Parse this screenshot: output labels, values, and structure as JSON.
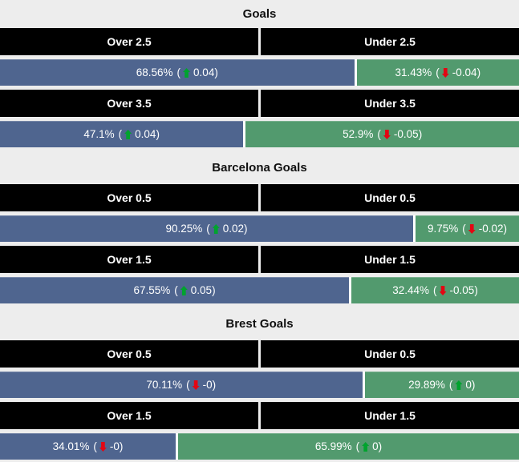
{
  "colors": {
    "page_bg": "#ededed",
    "header_bg": "#000000",
    "header_text": "#ffffff",
    "over_bar": "#4f658f",
    "under_bar": "#529a6e",
    "bar_text": "#ffffff",
    "up_arrow": "#00a32e",
    "down_arrow": "#e30613",
    "title_text": "#111111",
    "separator": "#ffffff"
  },
  "chart_data": {
    "type": "bar",
    "subtype": "horizontal-stacked-percentage-pairs",
    "value_unit": "percent",
    "range": [
      0,
      100
    ],
    "legend": "none",
    "layout": "each market row: black Over/Under header split 50/50, below it one full-width bar split proportionally (min segment width ~20%) into blue Over segment and green Under segment",
    "sections": [
      {
        "title": "Goals",
        "markets": [
          {
            "over_label": "Over 2.5",
            "under_label": "Under 2.5",
            "over": {
              "value": 68.56,
              "label": "68.56%",
              "change": "0.04",
              "trend": "up"
            },
            "under": {
              "value": 31.43,
              "label": "31.43%",
              "change": "-0.04",
              "trend": "down"
            }
          },
          {
            "over_label": "Over 3.5",
            "under_label": "Under 3.5",
            "over": {
              "value": 47.1,
              "label": "47.1%",
              "change": "0.04",
              "trend": "up"
            },
            "under": {
              "value": 52.9,
              "label": "52.9%",
              "change": "-0.05",
              "trend": "down"
            }
          }
        ]
      },
      {
        "title": "Barcelona Goals",
        "markets": [
          {
            "over_label": "Over 0.5",
            "under_label": "Under 0.5",
            "over": {
              "value": 90.25,
              "label": "90.25%",
              "change": "0.02",
              "trend": "up"
            },
            "under": {
              "value": 9.75,
              "label": "9.75%",
              "change": "-0.02",
              "trend": "down"
            }
          },
          {
            "over_label": "Over 1.5",
            "under_label": "Under 1.5",
            "over": {
              "value": 67.55,
              "label": "67.55%",
              "change": "0.05",
              "trend": "up"
            },
            "under": {
              "value": 32.44,
              "label": "32.44%",
              "change": "-0.05",
              "trend": "down"
            }
          }
        ]
      },
      {
        "title": "Brest Goals",
        "markets": [
          {
            "over_label": "Over 0.5",
            "under_label": "Under 0.5",
            "over": {
              "value": 70.11,
              "label": "70.11%",
              "change": "-0",
              "trend": "down"
            },
            "under": {
              "value": 29.89,
              "label": "29.89%",
              "change": "0",
              "trend": "up"
            }
          },
          {
            "over_label": "Over 1.5",
            "under_label": "Under 1.5",
            "over": {
              "value": 34.01,
              "label": "34.01%",
              "change": "-0",
              "trend": "down"
            },
            "under": {
              "value": 65.99,
              "label": "65.99%",
              "change": "0",
              "trend": "up"
            }
          }
        ]
      }
    ]
  }
}
